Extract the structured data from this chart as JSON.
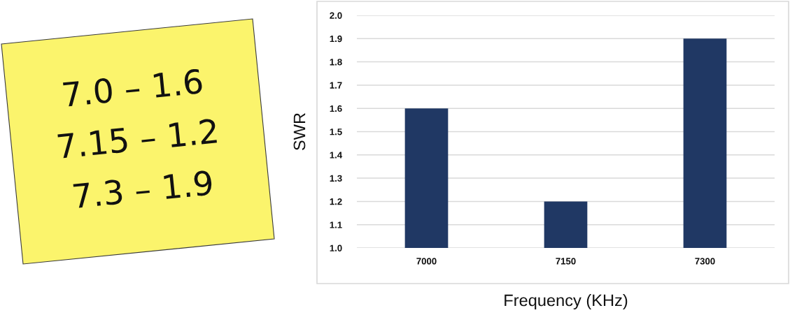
{
  "chart_data": {
    "type": "bar",
    "categories": [
      "7000",
      "7150",
      "7300"
    ],
    "values": [
      1.6,
      1.2,
      1.9
    ],
    "color": "#203864",
    "xlabel": "Frequency (KHz)",
    "ylabel": "SWR",
    "ylim": [
      1,
      2
    ],
    "yticks": [
      {
        "value": 1,
        "label": "1.0"
      },
      1.1,
      1.2,
      1.3,
      1.4,
      1.5,
      1.6,
      1.7,
      1.8,
      1.9,
      {
        "value": 2,
        "label": "2.0"
      }
    ],
    "grid": "y",
    "annotations": [
      "7.0 – 1.6",
      "7.15 – 1.2",
      "7.3 – 1.9"
    ]
  }
}
